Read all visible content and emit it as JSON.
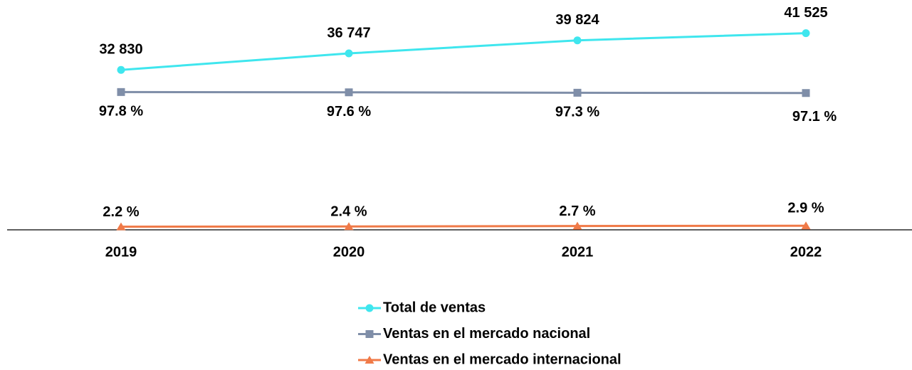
{
  "chart_data": {
    "type": "line",
    "categories": [
      "2019",
      "2020",
      "2021",
      "2022"
    ],
    "ylim": [
      0,
      150
    ],
    "y2lim": [
      -5000,
      45000
    ],
    "legend": "bottom",
    "series": [
      {
        "name": "Total de ventas",
        "color": "#3fe6ee",
        "marker": "circle",
        "axis": "y2",
        "values": [
          32830,
          36747,
          39824,
          41525
        ],
        "value_labels": [
          "32 830",
          "36 747",
          "39 824",
          "41 525"
        ]
      },
      {
        "name": "Ventas en el mercado nacional",
        "color": "#7f8ea8",
        "marker": "square",
        "values": [
          97.8,
          97.6,
          97.3,
          97.1
        ],
        "value_labels": [
          "97.8 %",
          "97.6 %",
          "97.3 %",
          "97.1 %"
        ]
      },
      {
        "name": "Ventas en el mercado internacional",
        "color": "#f07a48",
        "marker": "triangle",
        "values": [
          2.2,
          2.4,
          2.7,
          2.9
        ],
        "value_labels": [
          "2.2 %",
          "2.4 %",
          "2.7 %",
          "2.9 %"
        ]
      }
    ]
  }
}
